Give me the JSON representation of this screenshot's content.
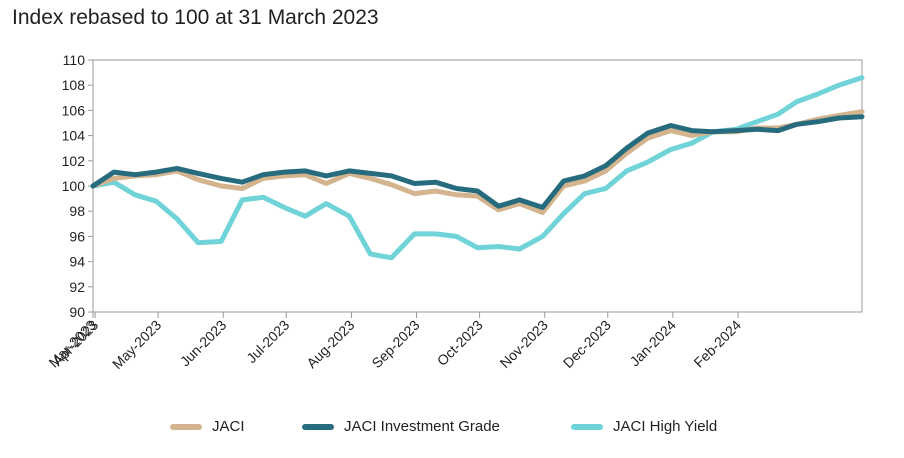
{
  "chart_data": {
    "type": "line",
    "title": "Index rebased to 100 at 31 March 2023",
    "xlabel": "",
    "ylabel": "",
    "ylim": [
      90,
      110
    ],
    "yticks": [
      90,
      92,
      94,
      96,
      98,
      100,
      102,
      104,
      106,
      108,
      110
    ],
    "xticks": [
      "Mar-2023",
      "Apr-2023",
      "May-2023",
      "Jun-2023",
      "Jul-2023",
      "Aug-2023",
      "Sep-2023",
      "Oct-2023",
      "Nov-2023",
      "Dec-2023",
      "Jan-2024",
      "Feb-2024"
    ],
    "x": [
      "2023-03-31",
      "2023-04-10",
      "2023-04-20",
      "2023-04-30",
      "2023-05-10",
      "2023-05-20",
      "2023-05-31",
      "2023-06-10",
      "2023-06-20",
      "2023-06-30",
      "2023-07-10",
      "2023-07-20",
      "2023-07-31",
      "2023-08-10",
      "2023-08-20",
      "2023-08-31",
      "2023-09-10",
      "2023-09-20",
      "2023-09-30",
      "2023-10-10",
      "2023-10-20",
      "2023-10-31",
      "2023-11-10",
      "2023-11-20",
      "2023-11-30",
      "2023-12-10",
      "2023-12-20",
      "2023-12-31",
      "2024-01-10",
      "2024-01-20",
      "2024-01-31",
      "2024-02-10",
      "2024-02-20",
      "2024-02-29",
      "2024-03-10",
      "2024-03-20",
      "2024-03-31"
    ],
    "series": [
      {
        "name": "JACI",
        "color": "#d4b48e",
        "values": [
          100.0,
          100.6,
          100.8,
          100.9,
          101.2,
          100.5,
          100.0,
          99.8,
          100.6,
          100.8,
          100.9,
          100.2,
          101.0,
          100.6,
          100.1,
          99.4,
          99.6,
          99.3,
          99.2,
          98.1,
          98.6,
          97.9,
          100.0,
          100.4,
          101.2,
          102.6,
          103.8,
          104.4,
          104.0,
          104.3,
          104.3,
          104.6,
          104.6,
          104.9,
          105.3,
          105.6,
          105.9
        ]
      },
      {
        "name": "JACI Investment Grade",
        "color": "#276c7e",
        "values": [
          100.0,
          101.1,
          100.9,
          101.1,
          101.4,
          101.0,
          100.6,
          100.3,
          100.9,
          101.1,
          101.2,
          100.8,
          101.2,
          101.0,
          100.8,
          100.2,
          100.3,
          99.8,
          99.6,
          98.4,
          98.9,
          98.3,
          100.4,
          100.8,
          101.6,
          103.0,
          104.2,
          104.8,
          104.4,
          104.3,
          104.4,
          104.5,
          104.4,
          104.9,
          105.1,
          105.4,
          105.5
        ]
      },
      {
        "name": "JACI High Yield",
        "color": "#6fd3d7",
        "values": [
          100.0,
          100.3,
          99.3,
          98.8,
          97.4,
          95.5,
          95.6,
          98.9,
          99.1,
          98.3,
          97.6,
          98.6,
          97.6,
          94.6,
          94.3,
          96.2,
          96.2,
          96.0,
          95.1,
          95.2,
          95.0,
          96.0,
          97.8,
          99.4,
          99.8,
          101.2,
          101.9,
          102.9,
          103.4,
          104.3,
          104.5,
          105.1,
          105.7,
          106.7,
          107.3,
          108.0,
          108.6
        ]
      }
    ],
    "legend_position": "bottom-center",
    "grid": false
  }
}
